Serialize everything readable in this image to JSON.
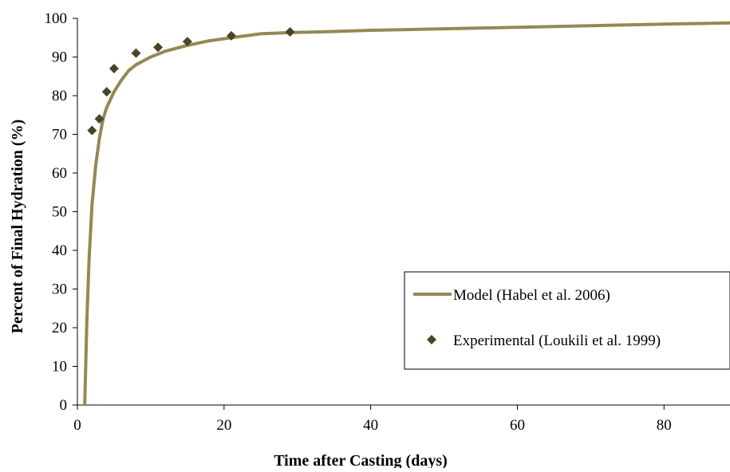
{
  "chart_data": {
    "type": "line",
    "title": "",
    "xlabel": "Time after Casting (days)",
    "ylabel": "Percent of Final Hydration (%)",
    "xlim": [
      0,
      89
    ],
    "ylim": [
      0,
      100
    ],
    "x_ticks": [
      0,
      20,
      40,
      60,
      80
    ],
    "y_ticks": [
      0,
      10,
      20,
      30,
      40,
      50,
      60,
      70,
      80,
      90,
      100
    ],
    "grid": false,
    "legend_position": "bottom-right",
    "series": [
      {
        "name": "Model (Habel et al. 2006)",
        "style": "line",
        "color": "#938953",
        "x": [
          1,
          1.3,
          1.6,
          2,
          2.5,
          3,
          3.5,
          4,
          5,
          6,
          7,
          8,
          10,
          12,
          15,
          18,
          21,
          25,
          29,
          35,
          40,
          50,
          60,
          70,
          80,
          89
        ],
        "y": [
          0,
          22,
          38,
          52,
          62,
          69,
          74,
          77,
          81,
          84,
          86.5,
          88,
          90,
          91.5,
          93,
          94.2,
          95,
          96,
          96.3,
          96.6,
          96.9,
          97.3,
          97.7,
          98.1,
          98.5,
          98.8
        ]
      },
      {
        "name": "Experimental (Loukili et al. 1999)",
        "style": "marker",
        "color": "#4a4528",
        "x": [
          2,
          3,
          4,
          5,
          8,
          11,
          15,
          21,
          29
        ],
        "y": [
          71,
          74,
          81,
          87,
          91,
          92.5,
          94,
          95.5,
          96.5
        ]
      }
    ]
  }
}
